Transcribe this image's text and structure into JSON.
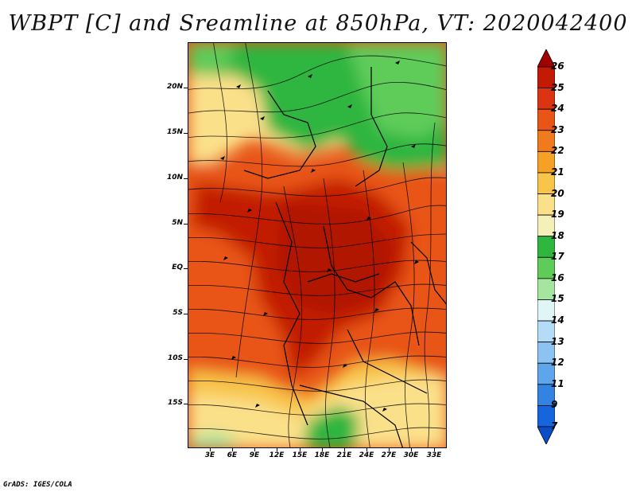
{
  "title": "WBPT [C] and Sreamline at 850hPa, VT: 2020042400",
  "credit": "GrADS: IGES/COLA",
  "map": {
    "lat_labels": [
      "20N",
      "15N",
      "10N",
      "5N",
      "EQ",
      "5S",
      "10S",
      "15S"
    ],
    "lon_labels": [
      "3E",
      "6E",
      "9E",
      "12E",
      "15E",
      "18E",
      "21E",
      "24E",
      "27E",
      "30E",
      "33E"
    ]
  },
  "colorbar": {
    "labels": [
      "26",
      "25",
      "24",
      "23",
      "22",
      "21",
      "20",
      "19",
      "18",
      "17",
      "16",
      "15",
      "14",
      "13",
      "12",
      "11",
      "9",
      "7"
    ],
    "colors": [
      "#a00000",
      "#c21a04",
      "#dc3412",
      "#e85516",
      "#f07b1e",
      "#f5a125",
      "#f8c44a",
      "#fbe08a",
      "#f5f0b8",
      "#2fb63f",
      "#5fcc5a",
      "#a6e5a0",
      "#e0f6f6",
      "#b5dcf7",
      "#8cc3f2",
      "#5ea5eb",
      "#3383e3",
      "#1565dc",
      "#0a4dc8"
    ]
  }
}
